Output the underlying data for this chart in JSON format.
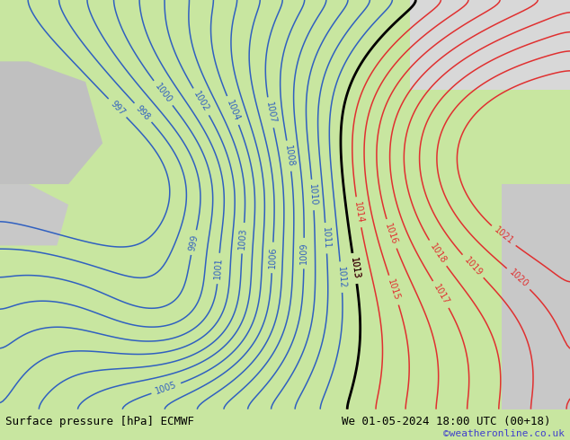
{
  "title_left": "Surface pressure [hPa] ECMWF",
  "title_right": "We 01-05-2024 18:00 UTC (00+18)",
  "credit": "©weatheronline.co.uk",
  "bg_color": "#c8e6a0",
  "land_color_green": "#a8d878",
  "land_color_gray": "#c8c8c8",
  "sea_color": "#c8e6a0",
  "blue_contour_color": "#3060c0",
  "red_contour_color": "#e03030",
  "black_contour_color": "#000000",
  "bottom_bar_color": "#ffffff",
  "bottom_text_color": "#000000",
  "credit_color": "#4040cc",
  "fig_width": 6.34,
  "fig_height": 4.9,
  "dpi": 100
}
